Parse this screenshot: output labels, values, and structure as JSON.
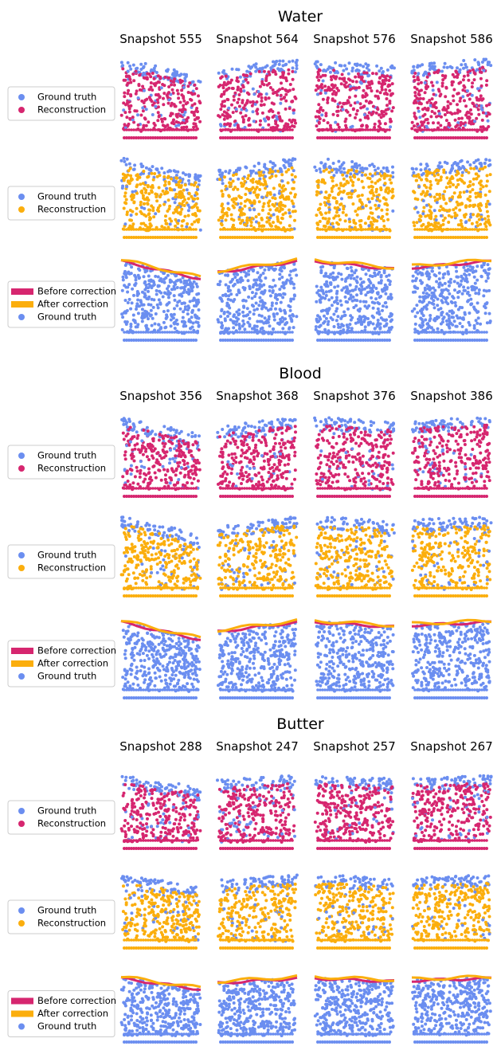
{
  "sections": [
    {
      "title": "Water",
      "snapshots": [
        "Snapshot 555",
        "Snapshot 564",
        "Snapshot 576",
        "Snapshot 586"
      ],
      "rows": [
        {
          "legend": [
            "Ground truth",
            "Reconstruction"
          ]
        },
        {
          "legend": [
            "Ground truth",
            "Reconstruction"
          ]
        },
        {
          "legend": [
            "Before correction",
            "After correction",
            "Ground truth"
          ]
        }
      ]
    },
    {
      "title": "Blood",
      "snapshots": [
        "Snapshot 356",
        "Snapshot 368",
        "Snapshot 376",
        "Snapshot 386"
      ],
      "rows": [
        {
          "legend": [
            "Ground truth",
            "Reconstruction"
          ]
        },
        {
          "legend": [
            "Ground truth",
            "Reconstruction"
          ]
        },
        {
          "legend": [
            "Before correction",
            "After correction",
            "Ground truth"
          ]
        }
      ]
    },
    {
      "title": "Butter",
      "snapshots": [
        "Snapshot 288",
        "Snapshot 247",
        "Snapshot 257",
        "Snapshot 267"
      ],
      "rows": [
        {
          "legend": [
            "Ground truth",
            "Reconstruction"
          ]
        },
        {
          "legend": [
            "Ground truth",
            "Reconstruction"
          ]
        },
        {
          "legend": [
            "Before correction",
            "After correction",
            "Ground truth"
          ]
        }
      ]
    }
  ]
}
